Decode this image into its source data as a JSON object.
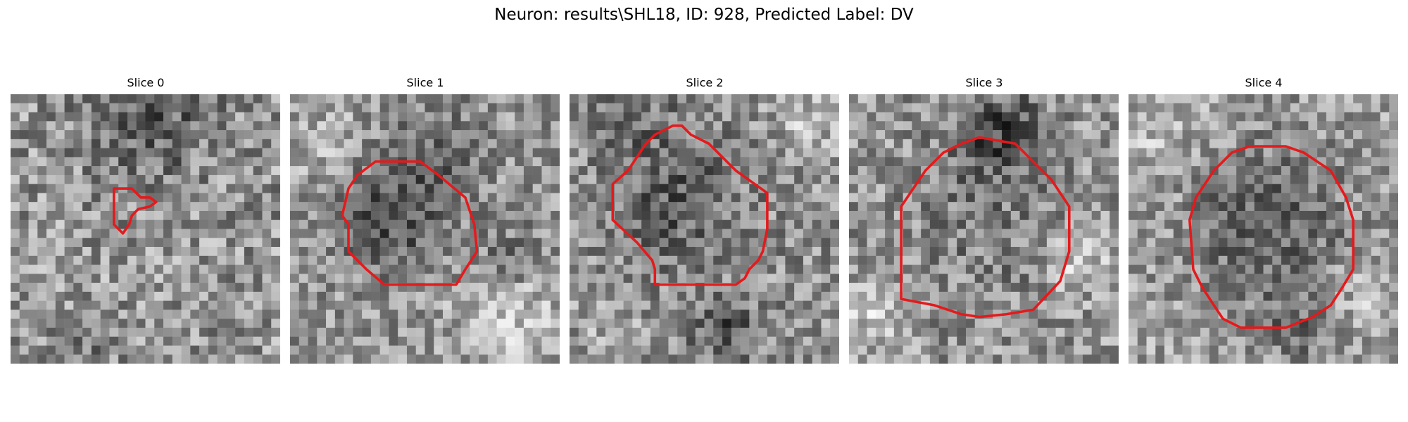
{
  "figure": {
    "suptitle": "Neuron: results\\SHL18, ID: 928, Predicted Label: DV",
    "contour_color": "#e41a1c",
    "colormap": "gray",
    "grid_size": 30
  },
  "panels": [
    {
      "title": "Slice 0",
      "seed": 11
    },
    {
      "title": "Slice 1",
      "seed": 23
    },
    {
      "title": "Slice 2",
      "seed": 37
    },
    {
      "title": "Slice 3",
      "seed": 41
    },
    {
      "title": "Slice 4",
      "seed": 59
    }
  ]
}
